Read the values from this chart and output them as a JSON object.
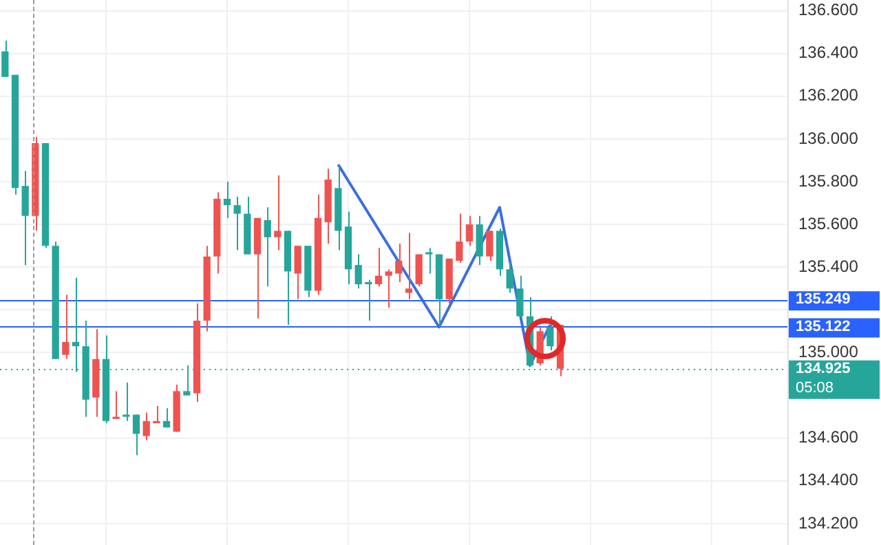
{
  "chart_data": {
    "type": "candlestick",
    "categories": [
      null,
      null,
      null,
      null,
      null,
      null,
      null,
      null,
      null,
      null,
      null,
      null,
      null,
      null,
      null,
      null,
      null,
      null,
      null,
      null,
      null,
      null,
      null,
      null,
      null,
      null,
      null,
      null,
      null,
      null,
      null,
      null,
      null,
      null,
      null,
      null,
      null,
      null,
      null,
      null,
      null,
      null,
      null,
      null,
      null,
      null,
      null,
      null,
      null,
      null,
      null,
      null,
      null,
      null,
      null,
      null,
      null,
      null,
      null,
      null,
      null,
      null,
      null,
      null,
      null,
      null,
      null,
      null,
      null,
      null,
      null,
      null,
      null,
      null,
      null,
      null,
      null,
      null
    ],
    "ohlc": [
      [
        136.29,
        136.46,
        136.29,
        136.41
      ],
      [
        135.77,
        136.3,
        135.74,
        136.3
      ],
      [
        135.64,
        135.85,
        135.41,
        135.78
      ],
      [
        135.98,
        136.01,
        135.57,
        135.64
      ],
      [
        135.5,
        135.98,
        135.49,
        135.98
      ],
      [
        134.97,
        135.52,
        134.97,
        135.5
      ],
      [
        135.05,
        135.27,
        134.97,
        134.99
      ],
      [
        135.03,
        135.35,
        134.91,
        135.05
      ],
      [
        134.78,
        135.15,
        134.7,
        135.03
      ],
      [
        134.97,
        135.11,
        134.7,
        134.79
      ],
      [
        134.68,
        135.08,
        134.67,
        134.97
      ],
      [
        134.7,
        134.82,
        134.69,
        134.69
      ],
      [
        134.7,
        134.86,
        134.68,
        134.71
      ],
      [
        134.62,
        134.71,
        134.52,
        134.71
      ],
      [
        134.68,
        134.72,
        134.59,
        134.61
      ],
      [
        134.68,
        134.75,
        134.67,
        134.67
      ],
      [
        134.65,
        134.74,
        134.65,
        134.68
      ],
      [
        134.82,
        134.85,
        134.63,
        134.63
      ],
      [
        134.8,
        134.94,
        134.8,
        134.82
      ],
      [
        135.15,
        135.23,
        134.77,
        134.81
      ],
      [
        135.45,
        135.5,
        135.1,
        135.15
      ],
      [
        135.72,
        135.75,
        135.37,
        135.45
      ],
      [
        135.69,
        135.8,
        135.63,
        135.72
      ],
      [
        135.65,
        135.73,
        135.48,
        135.69
      ],
      [
        135.46,
        135.73,
        135.46,
        135.65
      ],
      [
        135.63,
        135.63,
        135.16,
        135.46
      ],
      [
        135.54,
        135.68,
        135.31,
        135.62
      ],
      [
        135.57,
        135.83,
        135.48,
        135.54
      ],
      [
        135.38,
        135.57,
        135.13,
        135.57
      ],
      [
        135.5,
        135.5,
        135.25,
        135.37
      ],
      [
        135.29,
        135.5,
        135.26,
        135.5
      ],
      [
        135.63,
        135.74,
        135.27,
        135.29
      ],
      [
        135.81,
        135.86,
        135.51,
        135.61
      ],
      [
        135.57,
        135.88,
        135.48,
        135.77
      ],
      [
        135.39,
        135.66,
        135.32,
        135.59
      ],
      [
        135.32,
        135.46,
        135.3,
        135.41
      ],
      [
        135.32,
        135.34,
        135.15,
        135.33
      ],
      [
        135.36,
        135.49,
        135.31,
        135.32
      ],
      [
        135.38,
        135.39,
        135.21,
        135.36
      ],
      [
        135.43,
        135.51,
        135.33,
        135.37
      ],
      [
        135.3,
        135.56,
        135.25,
        135.28
      ],
      [
        135.46,
        135.46,
        135.31,
        135.32
      ],
      [
        135.46,
        135.49,
        135.37,
        135.47
      ],
      [
        135.25,
        135.46,
        135.12,
        135.46
      ],
      [
        135.44,
        135.44,
        135.23,
        135.25
      ],
      [
        135.52,
        135.65,
        135.42,
        135.43
      ],
      [
        135.6,
        135.64,
        135.5,
        135.52
      ],
      [
        135.45,
        135.64,
        135.41,
        135.6
      ],
      [
        135.57,
        135.57,
        135.43,
        135.45
      ],
      [
        135.39,
        135.58,
        135.36,
        135.57
      ],
      [
        135.3,
        135.42,
        135.28,
        135.39
      ],
      [
        135.17,
        135.36,
        135.17,
        135.3
      ],
      [
        134.94,
        135.26,
        134.94,
        135.17
      ],
      [
        135.1,
        135.12,
        134.94,
        134.95
      ],
      [
        135.03,
        135.17,
        135.01,
        135.12
      ],
      [
        135.13,
        135.13,
        134.89,
        134.925
      ],
      null,
      null,
      null,
      null,
      null,
      null,
      null,
      null,
      null,
      null,
      null,
      null,
      null,
      null,
      null,
      null,
      null,
      null,
      null,
      null,
      null,
      null
    ],
    "series": [
      {
        "type": "line",
        "color": "#3b6fe0",
        "values": [
          null,
          null,
          null,
          null,
          null,
          null,
          null,
          null,
          null,
          null,
          null,
          null,
          null,
          null,
          null,
          null,
          null,
          null,
          null,
          null,
          null,
          null,
          null,
          null,
          null,
          null,
          null,
          null,
          null,
          null,
          null,
          null,
          null,
          135.88,
          null,
          null,
          null,
          null,
          null,
          null,
          null,
          null,
          null,
          135.12,
          null,
          null,
          null,
          null,
          null,
          135.68,
          null,
          null,
          134.94,
          null,
          135.13,
          null,
          null,
          null,
          null,
          null,
          null,
          null,
          null,
          null,
          null,
          null,
          null,
          null,
          null,
          null,
          null,
          null,
          null,
          null,
          null,
          null,
          null,
          null
        ]
      }
    ],
    "ylim": [
      134.1,
      136.65
    ],
    "yticks": [
      {
        "value": 134.2,
        "label": "134.200"
      },
      {
        "value": 134.4,
        "label": "134.400"
      },
      {
        "value": 134.6,
        "label": "134.600"
      },
      {
        "value": 135.0,
        "label": "135.000"
      },
      {
        "value": 135.2,
        "label": null
      },
      {
        "value": 135.4,
        "label": "135.400"
      },
      {
        "value": 135.6,
        "label": "135.600"
      },
      {
        "value": 135.8,
        "label": "135.800"
      },
      {
        "value": 136.0,
        "label": "136.000"
      },
      {
        "value": 136.2,
        "label": "136.200"
      },
      {
        "value": 136.4,
        "label": "136.400"
      },
      {
        "value": 136.6,
        "label": "136.600"
      }
    ],
    "ref_lines": [
      {
        "axis": "y",
        "value": 135.249,
        "label": "135.249",
        "color": "#2962ff"
      },
      {
        "axis": "y",
        "value": 135.122,
        "label": "135.122",
        "color": "#2962ff"
      },
      {
        "axis": "y",
        "value": 134.925,
        "label": "134.925",
        "color": "#26a69a",
        "line_style": "dotted"
      }
    ],
    "annotations": [
      "05:08"
    ],
    "grid": true,
    "tick_labels": "y"
  }
}
